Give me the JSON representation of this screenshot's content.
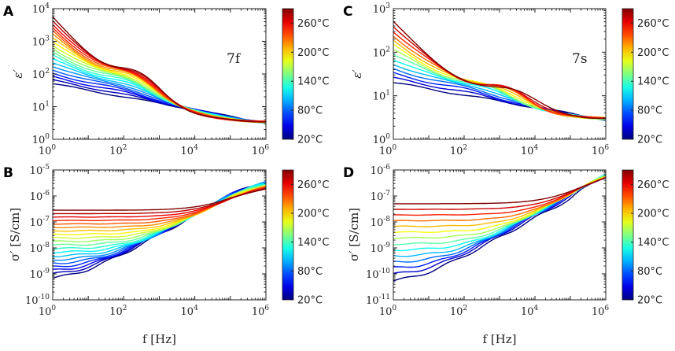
{
  "chart_data": [
    {
      "id": "A",
      "type": "line",
      "panel_label": "A",
      "annotation": "7f",
      "ylabel": "ε′",
      "xlabel": "",
      "xscale": "log",
      "yscale": "log",
      "xlim_exp": [
        0,
        6
      ],
      "ylim_exp": [
        0,
        4
      ],
      "x_ticks": [
        {
          "base": "10",
          "exp": "0"
        },
        {
          "base": "10",
          "exp": "2"
        },
        {
          "base": "10",
          "exp": "4"
        },
        {
          "base": "10",
          "exp": "6"
        }
      ],
      "y_ticks": [
        {
          "base": "10",
          "exp": "0"
        },
        {
          "base": "10",
          "exp": "1"
        },
        {
          "base": "10",
          "exp": "2"
        },
        {
          "base": "10",
          "exp": "3"
        },
        {
          "base": "10",
          "exp": "4"
        }
      ],
      "colorbar": {
        "labels": [
          "260°C",
          "200°C",
          "140°C",
          "80°C",
          "20°C"
        ],
        "range": [
          20,
          290
        ]
      },
      "series_count": 20,
      "low_start": [
        1.7,
        3.75
      ],
      "low_end": [
        0.5,
        0.5
      ],
      "low_bump": [
        0.0,
        0.0,
        2.0
      ],
      "high_start": [
        1.7,
        3.75
      ],
      "high_end": [
        0.55,
        0.55
      ],
      "high_bump": [
        0.45,
        0.65,
        2.5
      ],
      "curve_shape": "permittivity"
    },
    {
      "id": "B",
      "type": "line",
      "panel_label": "B",
      "annotation": "",
      "ylabel": "σ′ [S/cm]",
      "xlabel": "f [Hz]",
      "xscale": "log",
      "yscale": "log",
      "xlim_exp": [
        0,
        6
      ],
      "ylim_exp": [
        -10,
        -5
      ],
      "x_ticks": [
        {
          "base": "10",
          "exp": "0"
        },
        {
          "base": "10",
          "exp": "2"
        },
        {
          "base": "10",
          "exp": "4"
        },
        {
          "base": "10",
          "exp": "6"
        }
      ],
      "y_ticks": [
        {
          "base": "10",
          "exp": "-10"
        },
        {
          "base": "10",
          "exp": "-9"
        },
        {
          "base": "10",
          "exp": "-8"
        },
        {
          "base": "10",
          "exp": "-7"
        },
        {
          "base": "10",
          "exp": "-6"
        },
        {
          "base": "10",
          "exp": "-5"
        }
      ],
      "colorbar": {
        "labels": [
          "260°C",
          "200°C",
          "140°C",
          "80°C",
          "20°C"
        ],
        "range": [
          20,
          290
        ]
      },
      "series_count": 20,
      "dc_start": -9.3,
      "dc_end": -6.55,
      "hf_value": -6.0,
      "curve_shape": "conductivity"
    },
    {
      "id": "C",
      "type": "line",
      "panel_label": "C",
      "annotation": "7s",
      "ylabel": "ε′",
      "xlabel": "",
      "xscale": "log",
      "yscale": "log",
      "xlim_exp": [
        0,
        6
      ],
      "ylim_exp": [
        0,
        3
      ],
      "x_ticks": [
        {
          "base": "10",
          "exp": "0"
        },
        {
          "base": "10",
          "exp": "2"
        },
        {
          "base": "10",
          "exp": "4"
        },
        {
          "base": "10",
          "exp": "6"
        }
      ],
      "y_ticks": [
        {
          "base": "10",
          "exp": "0"
        },
        {
          "base": "10",
          "exp": "1"
        },
        {
          "base": "10",
          "exp": "2"
        },
        {
          "base": "10",
          "exp": "3"
        }
      ],
      "colorbar": {
        "labels": [
          "260°C",
          "200°C",
          "140°C",
          "80°C",
          "20°C"
        ],
        "range": [
          20,
          290
        ]
      },
      "series_count": 14,
      "low_start": [
        1.3,
        2.7
      ],
      "low_end": [
        0.45,
        0.45
      ],
      "low_bump": [
        0.0,
        0.0,
        2.0
      ],
      "high_start": [
        1.3,
        2.7
      ],
      "high_end": [
        0.5,
        0.5
      ],
      "high_bump": [
        0.35,
        0.45,
        3.5
      ],
      "curve_shape": "permittivity"
    },
    {
      "id": "D",
      "type": "line",
      "panel_label": "D",
      "annotation": "",
      "ylabel": "σ′ [S/cm]",
      "xlabel": "f [Hz]",
      "xscale": "log",
      "yscale": "log",
      "xlim_exp": [
        0,
        6
      ],
      "ylim_exp": [
        -11,
        -6
      ],
      "x_ticks": [
        {
          "base": "10",
          "exp": "0"
        },
        {
          "base": "10",
          "exp": "2"
        },
        {
          "base": "10",
          "exp": "4"
        },
        {
          "base": "10",
          "exp": "6"
        }
      ],
      "y_ticks": [
        {
          "base": "10",
          "exp": "-11"
        },
        {
          "base": "10",
          "exp": "-10"
        },
        {
          "base": "10",
          "exp": "-9"
        },
        {
          "base": "10",
          "exp": "-8"
        },
        {
          "base": "10",
          "exp": "-7"
        },
        {
          "base": "10",
          "exp": "-6"
        }
      ],
      "colorbar": {
        "labels": [
          "260°C",
          "200°C",
          "140°C",
          "80°C",
          "20°C"
        ],
        "range": [
          20,
          290
        ]
      },
      "series_count": 14,
      "dc_start": -10.4,
      "dc_end": -7.3,
      "hf_value": -6.4,
      "curve_shape": "conductivity"
    }
  ]
}
